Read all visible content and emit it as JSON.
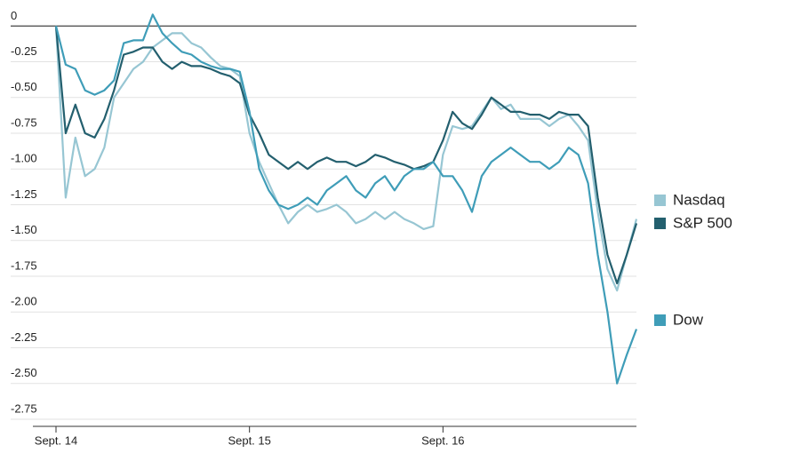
{
  "chart_data": {
    "type": "line",
    "x": [
      0,
      0.05,
      0.1,
      0.15,
      0.2,
      0.25,
      0.3,
      0.35,
      0.4,
      0.45,
      0.5,
      0.55,
      0.6,
      0.65,
      0.7,
      0.75,
      0.8,
      0.85,
      0.9,
      0.95,
      1,
      1.05,
      1.1,
      1.15,
      1.2,
      1.25,
      1.3,
      1.35,
      1.4,
      1.45,
      1.5,
      1.55,
      1.6,
      1.65,
      1.7,
      1.75,
      1.8,
      1.85,
      1.9,
      1.95,
      2,
      2.05,
      2.1,
      2.15,
      2.2,
      2.25,
      2.3,
      2.35,
      2.4,
      2.45,
      2.5,
      2.55,
      2.6,
      2.65,
      2.7,
      2.75,
      2.8,
      2.85,
      2.9,
      2.95,
      3
    ],
    "xlim": [
      0,
      3
    ],
    "xticks": [
      {
        "value": 0,
        "label": "Sept. 14"
      },
      {
        "value": 1,
        "label": "Sept. 15"
      },
      {
        "value": 2,
        "label": "Sept. 16"
      }
    ],
    "ylim": [
      -2.8,
      0.12
    ],
    "yticks": [
      0,
      -0.25,
      {
        "value": -0.5,
        "label": "-0.50"
      },
      -0.75,
      {
        "value": -1,
        "label": "-1.00"
      },
      -1.25,
      {
        "value": -1.5,
        "label": "-1.50"
      },
      -1.75,
      {
        "value": -2,
        "label": "-2.00"
      },
      -2.25,
      {
        "value": -2.5,
        "label": "-2.50"
      },
      -2.75
    ],
    "grid": true,
    "legend": "right",
    "series": [
      {
        "name": "Nasdaq",
        "color": "#97c6d3",
        "values": [
          0,
          -1.2,
          -0.78,
          -1.05,
          -1.0,
          -0.85,
          -0.5,
          -0.4,
          -0.3,
          -0.25,
          -0.15,
          -0.1,
          -0.05,
          -0.05,
          -0.12,
          -0.15,
          -0.22,
          -0.28,
          -0.3,
          -0.35,
          -0.75,
          -0.95,
          -1.1,
          -1.25,
          -1.38,
          -1.3,
          -1.25,
          -1.3,
          -1.28,
          -1.25,
          -1.3,
          -1.38,
          -1.35,
          -1.3,
          -1.35,
          -1.3,
          -1.35,
          -1.38,
          -1.42,
          -1.4,
          -0.9,
          -0.7,
          -0.72,
          -0.7,
          -0.6,
          -0.5,
          -0.58,
          -0.55,
          -0.65,
          -0.65,
          -0.65,
          -0.7,
          -0.65,
          -0.62,
          -0.7,
          -0.8,
          -1.3,
          -1.7,
          -1.85,
          -1.6,
          -1.35
        ]
      },
      {
        "name": "S&P 500",
        "color": "#235f6e",
        "values": [
          0,
          -0.75,
          -0.55,
          -0.75,
          -0.78,
          -0.65,
          -0.45,
          -0.2,
          -0.18,
          -0.15,
          -0.15,
          -0.25,
          -0.3,
          -0.25,
          -0.28,
          -0.28,
          -0.3,
          -0.33,
          -0.35,
          -0.4,
          -0.62,
          -0.75,
          -0.9,
          -0.95,
          -1.0,
          -0.95,
          -1.0,
          -0.95,
          -0.92,
          -0.95,
          -0.95,
          -0.98,
          -0.95,
          -0.9,
          -0.92,
          -0.95,
          -0.97,
          -1.0,
          -0.98,
          -0.95,
          -0.8,
          -0.6,
          -0.68,
          -0.72,
          -0.62,
          -0.5,
          -0.55,
          -0.6,
          -0.6,
          -0.62,
          -0.62,
          -0.65,
          -0.6,
          -0.62,
          -0.62,
          -0.7,
          -1.2,
          -1.6,
          -1.8,
          -1.6,
          -1.38
        ]
      },
      {
        "name": "Dow",
        "color": "#3f9db8",
        "values": [
          0,
          -0.27,
          -0.3,
          -0.45,
          -0.48,
          -0.45,
          -0.38,
          -0.12,
          -0.1,
          -0.1,
          0.08,
          -0.05,
          -0.12,
          -0.18,
          -0.2,
          -0.25,
          -0.28,
          -0.3,
          -0.3,
          -0.32,
          -0.6,
          -1.0,
          -1.15,
          -1.25,
          -1.28,
          -1.25,
          -1.2,
          -1.25,
          -1.15,
          -1.1,
          -1.05,
          -1.15,
          -1.2,
          -1.1,
          -1.05,
          -1.15,
          -1.05,
          -1.0,
          -1.0,
          -0.95,
          -1.05,
          -1.05,
          -1.15,
          -1.3,
          -1.05,
          -0.95,
          -0.9,
          -0.85,
          -0.9,
          -0.95,
          -0.95,
          -1.0,
          -0.95,
          -0.85,
          -0.9,
          -1.1,
          -1.6,
          -2.0,
          -2.5,
          -2.3,
          -2.12
        ]
      }
    ]
  }
}
